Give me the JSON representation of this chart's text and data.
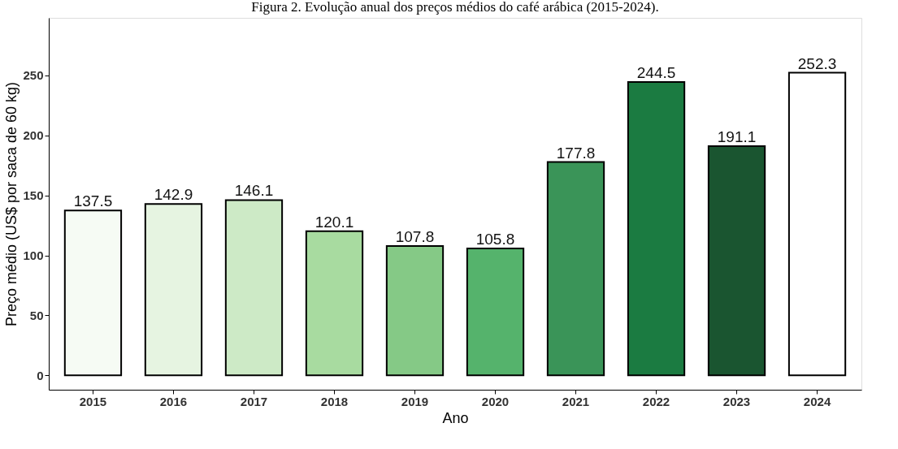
{
  "chart_data": {
    "type": "bar",
    "title": "Figura 2. Evolução anual dos preços médios do café arábica (2015-2024).",
    "xlabel": "Ano",
    "ylabel": "Preço médio (US$ por saca de 60 kg)",
    "categories": [
      "2015",
      "2016",
      "2017",
      "2018",
      "2019",
      "2020",
      "2021",
      "2022",
      "2023",
      "2024"
    ],
    "values": [
      137.5,
      142.9,
      146.1,
      120.1,
      107.8,
      105.8,
      177.8,
      244.5,
      191.1,
      252.3
    ],
    "colors": [
      "#f6fbf4",
      "#e6f4e1",
      "#cdeac6",
      "#a8dba0",
      "#85c986",
      "#55b36c",
      "#3a9458",
      "#1b7b41",
      "#1a5530",
      "#ffffff"
    ],
    "ylim": [
      -12,
      298
    ],
    "yticks": [
      0,
      50,
      100,
      150,
      200,
      250
    ],
    "data_labels": true,
    "grid": false
  }
}
